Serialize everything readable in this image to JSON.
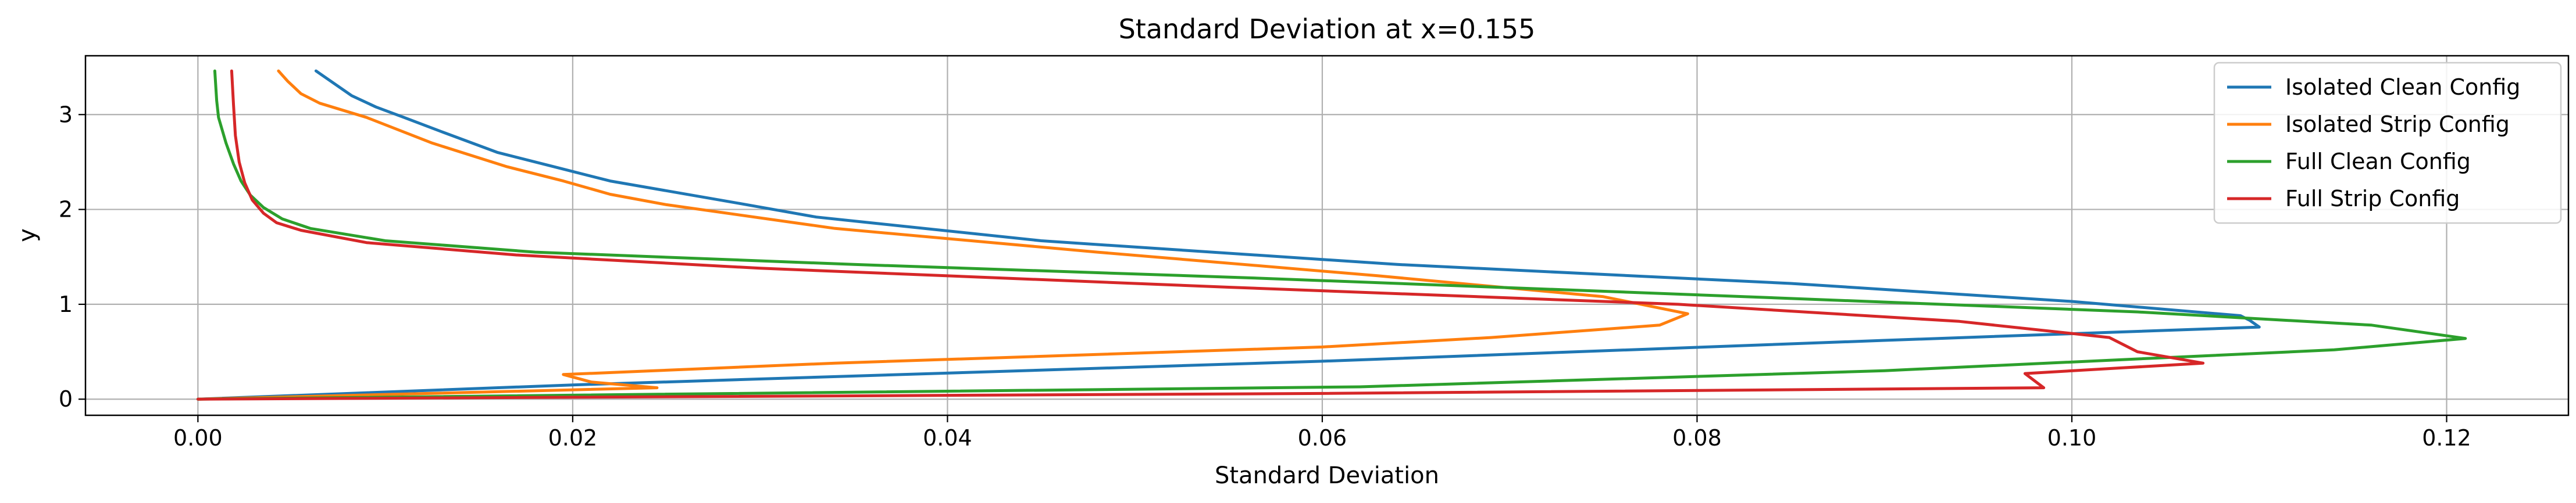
{
  "chart_data": {
    "type": "line",
    "title": "Standard Deviation at x=0.155",
    "xlabel": "Standard Deviation",
    "ylabel": "y",
    "xlim": [
      -0.006,
      0.1265
    ],
    "ylim": [
      -0.17,
      3.62
    ],
    "xticks": [
      0.0,
      0.02,
      0.04,
      0.06,
      0.08,
      0.1,
      0.12
    ],
    "xtick_labels": [
      "0.00",
      "0.02",
      "0.04",
      "0.06",
      "0.08",
      "0.10",
      "0.12"
    ],
    "yticks": [
      0,
      1,
      2,
      3
    ],
    "ytick_labels": [
      "0",
      "1",
      "2",
      "3"
    ],
    "grid": true,
    "legend_position": "top-right",
    "series": [
      {
        "name": "Isolated Clean Config",
        "color": "#1f77b4",
        "x": [
          0.0,
          0.02,
          0.06,
          0.09,
          0.11,
          0.1095,
          0.109,
          0.1,
          0.085,
          0.064,
          0.045,
          0.033,
          0.029,
          0.022,
          0.019,
          0.016,
          0.013,
          0.011,
          0.0095,
          0.0082,
          0.0063
        ],
        "y": [
          0.0,
          0.15,
          0.4,
          0.62,
          0.76,
          0.83,
          0.88,
          1.03,
          1.22,
          1.42,
          1.67,
          1.92,
          2.06,
          2.3,
          2.45,
          2.6,
          2.82,
          2.97,
          3.08,
          3.2,
          3.46
        ]
      },
      {
        "name": "Isolated Strip Config",
        "color": "#ff7f0e",
        "x": [
          0.0,
          0.0245,
          0.021,
          0.0195,
          0.034,
          0.06,
          0.069,
          0.078,
          0.0795,
          0.075,
          0.063,
          0.048,
          0.034,
          0.025,
          0.022,
          0.0195,
          0.0165,
          0.0125,
          0.009,
          0.0065,
          0.0055,
          0.0048,
          0.0043
        ],
        "y": [
          0.0,
          0.12,
          0.18,
          0.26,
          0.38,
          0.55,
          0.65,
          0.78,
          0.9,
          1.08,
          1.3,
          1.55,
          1.8,
          2.05,
          2.16,
          2.3,
          2.45,
          2.7,
          2.97,
          3.12,
          3.22,
          3.35,
          3.46
        ]
      },
      {
        "name": "Full Clean Config",
        "color": "#2ca02c",
        "x": [
          0.0,
          0.062,
          0.09,
          0.114,
          0.121,
          0.116,
          0.1035,
          0.08,
          0.056,
          0.035,
          0.018,
          0.01,
          0.006,
          0.0045,
          0.0035,
          0.0028,
          0.0023,
          0.0019,
          0.0015,
          0.0011,
          0.001,
          0.0009
        ],
        "y": [
          0.0,
          0.13,
          0.3,
          0.52,
          0.64,
          0.78,
          0.92,
          1.1,
          1.28,
          1.42,
          1.55,
          1.67,
          1.8,
          1.9,
          2.02,
          2.15,
          2.3,
          2.48,
          2.7,
          2.97,
          3.15,
          3.46
        ]
      },
      {
        "name": "Full Strip Config",
        "color": "#d62728",
        "x": [
          0.0,
          0.06,
          0.0985,
          0.0975,
          0.107,
          0.1035,
          0.102,
          0.094,
          0.079,
          0.055,
          0.03,
          0.017,
          0.009,
          0.0055,
          0.0042,
          0.0035,
          0.0029,
          0.0025,
          0.0022,
          0.002,
          0.0019,
          0.0018
        ],
        "y": [
          0.0,
          0.06,
          0.12,
          0.27,
          0.38,
          0.5,
          0.65,
          0.82,
          1.0,
          1.18,
          1.38,
          1.52,
          1.65,
          1.78,
          1.86,
          1.96,
          2.1,
          2.28,
          2.5,
          2.78,
          3.1,
          3.46
        ]
      }
    ]
  }
}
